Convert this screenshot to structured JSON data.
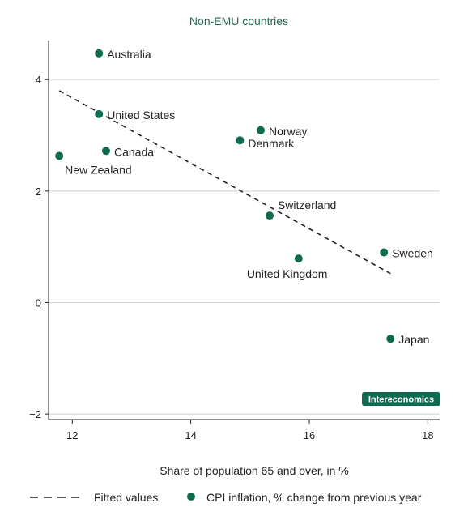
{
  "chart_data": {
    "type": "scatter",
    "title": "Non-EMU countries",
    "xlabel": "Share of population 65 and over, in %",
    "ylabel": "",
    "xlim": [
      11.6,
      18.2
    ],
    "ylim": [
      -2.1,
      4.7
    ],
    "xticks": [
      12,
      14,
      16,
      18
    ],
    "yticks": [
      -2,
      0,
      2,
      4
    ],
    "grid": "horizontal",
    "point_color": "#0e6b4f",
    "series": [
      {
        "name": "CPI inflation, % change from previous year",
        "points": [
          {
            "label": "Australia",
            "x": 12.45,
            "y": 4.47
          },
          {
            "label": "United States",
            "x": 12.45,
            "y": 3.38
          },
          {
            "label": "Canada",
            "x": 12.57,
            "y": 2.72
          },
          {
            "label": "New Zealand",
            "x": 11.78,
            "y": 2.63
          },
          {
            "label": "Norway",
            "x": 15.18,
            "y": 3.09
          },
          {
            "label": "Denmark",
            "x": 14.83,
            "y": 2.91
          },
          {
            "label": "Switzerland",
            "x": 15.33,
            "y": 1.56
          },
          {
            "label": "United Kingdom",
            "x": 15.82,
            "y": 0.79
          },
          {
            "label": "Sweden",
            "x": 17.26,
            "y": 0.9
          },
          {
            "label": "Japan",
            "x": 17.37,
            "y": -0.65
          }
        ]
      }
    ],
    "fitted_line": {
      "name": "Fitted values",
      "x": [
        11.78,
        17.37
      ],
      "y": [
        3.8,
        0.52
      ]
    },
    "legend_position": "bottom",
    "watermark": "Intereconomics"
  }
}
